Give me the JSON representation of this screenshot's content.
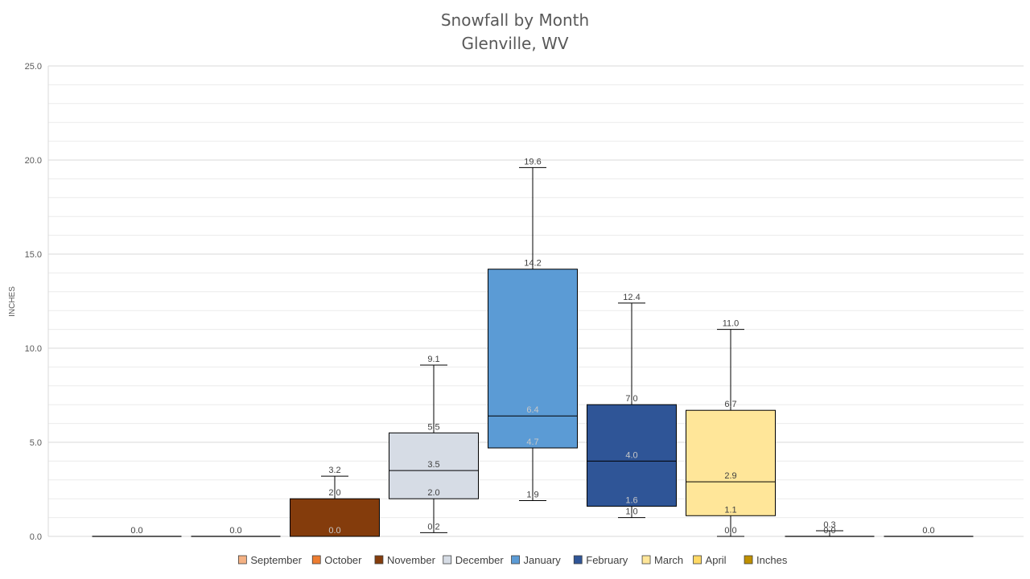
{
  "chart_data": {
    "type": "box",
    "title": "Snowfall by Month",
    "subtitle": "Glenville, WV",
    "xlabel": "",
    "ylabel": "INCHES",
    "ylim": [
      0,
      25
    ],
    "y_ticks": [
      "0.0",
      "5.0",
      "10.0",
      "15.0",
      "20.0",
      "25.0"
    ],
    "grid": true,
    "legend_position": "bottom",
    "series": [
      {
        "name": "September",
        "color": "#F4B183",
        "min": 0.0,
        "q1": 0.0,
        "median": 0.0,
        "q3": 0.0,
        "max": 0.0,
        "labels": [
          "0.0"
        ]
      },
      {
        "name": "October",
        "color": "#ED7D31",
        "min": 0.0,
        "q1": 0.0,
        "median": 0.0,
        "q3": 0.0,
        "max": 0.0,
        "labels": [
          "0.0"
        ]
      },
      {
        "name": "November",
        "color": "#843C0C",
        "min": 0.0,
        "q1": 0.0,
        "median": 0.0,
        "q3": 2.0,
        "max": 3.2,
        "labels": [
          "3.2",
          "2.0",
          "0.0"
        ]
      },
      {
        "name": "December",
        "color": "#D6DCE5",
        "min": 0.2,
        "q1": 2.0,
        "median": 3.5,
        "q3": 5.5,
        "max": 9.1,
        "labels": [
          "9.1",
          "5.5",
          "3.5",
          "2.0",
          "0.2"
        ]
      },
      {
        "name": "January",
        "color": "#5B9BD5",
        "min": 1.9,
        "q1": 4.7,
        "median": 6.4,
        "q3": 14.2,
        "max": 19.6,
        "labels": [
          "19.6",
          "14.2",
          "6.4",
          "4.7",
          "1.9"
        ]
      },
      {
        "name": "February",
        "color": "#2F5597",
        "min": 1.0,
        "q1": 1.6,
        "median": 4.0,
        "q3": 7.0,
        "max": 12.4,
        "labels": [
          "12.4",
          "7.0",
          "4.0",
          "1.6",
          "1.0"
        ]
      },
      {
        "name": "March",
        "color": "#FFE699",
        "min": 0.0,
        "q1": 1.1,
        "median": 2.9,
        "q3": 6.7,
        "max": 11.0,
        "labels": [
          "11.0",
          "6.7",
          "2.9",
          "1.1",
          "0.0"
        ]
      },
      {
        "name": "April",
        "color": "#FFD966",
        "min": 0.0,
        "q1": 0.0,
        "median": 0.0,
        "q3": 0.0,
        "max": 0.3,
        "labels": [
          "0.3",
          "0.0"
        ]
      },
      {
        "name": "Inches",
        "color": "#BF9000",
        "min": 0.0,
        "q1": 0.0,
        "median": 0.0,
        "q3": 0.0,
        "max": 0.0,
        "labels": [
          "0.0"
        ]
      }
    ]
  }
}
